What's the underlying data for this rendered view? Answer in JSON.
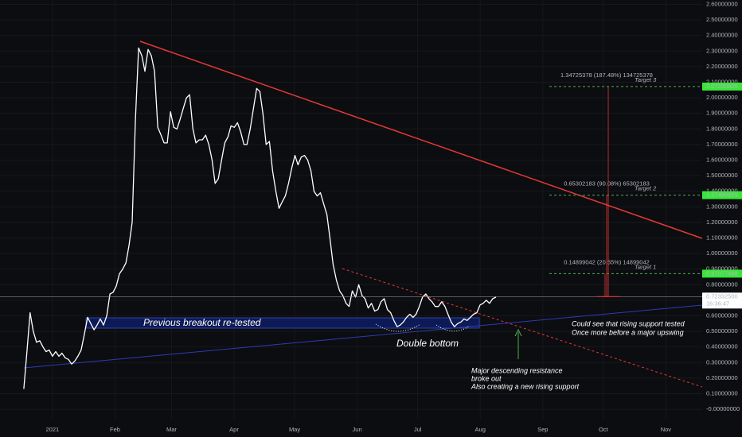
{
  "chart_data": {
    "type": "line",
    "x": [
      -14.2,
      -12.6,
      -11.1,
      -9.5,
      -7.9,
      -6.3,
      -4.7,
      -3.2,
      -1.6,
      0,
      1.6,
      3.2,
      4.7,
      6.3,
      7.9,
      9.5,
      11.1,
      12.6,
      14.2,
      15.8,
      17.4,
      19.0,
      20.6,
      22.1,
      23.7,
      25.3,
      26.9,
      28.5,
      30.0,
      31.6,
      33.2,
      34.8,
      36.4,
      37.9,
      39.5,
      41.1,
      42.7,
      44.3,
      45.8,
      47.4,
      49.0,
      50.6,
      52.2,
      53.8,
      55.3,
      56.9,
      58.5,
      60.1,
      61.7,
      63.2,
      64.8,
      66.4,
      68.0,
      69.6,
      71.1,
      72.7,
      74.3,
      75.9,
      77.5,
      79.1,
      80.6,
      82.2,
      83.8,
      85.4,
      87.0,
      88.5,
      90.1,
      91.7,
      93.3,
      94.9,
      96.4,
      98.0,
      99.6,
      101.2,
      102.8,
      104.3,
      105.9,
      107.5,
      109.1,
      110.7,
      112.3,
      113.8,
      115.4,
      117.0,
      118.6,
      120.2,
      121.7,
      123.3,
      124.9,
      126.5,
      128.1,
      129.6,
      131.2,
      132.8,
      134.4,
      136.0,
      137.5,
      139.1,
      140.7,
      142.3,
      143.9,
      145.5,
      147.0,
      148.6,
      150.2,
      151.8,
      153.4,
      154.9,
      156.5,
      158.1,
      159.7,
      161.3,
      162.8,
      164.4,
      166.0,
      167.6,
      169.2,
      170.8,
      172.3,
      173.9,
      175.5,
      177.1,
      178.7,
      180.2,
      181.8,
      183.4,
      185.0,
      186.6,
      188.1,
      189.7,
      191.3,
      192.9,
      194.5,
      196.0,
      197.6,
      199.2,
      200.8,
      202.4,
      204.0,
      205.5,
      207.1,
      208.7,
      210.3,
      211.9,
      213.4,
      215.0,
      216.6,
      218.2,
      219.8
    ],
    "series": [
      {
        "color": "#ffffff",
        "values": [
          0.13,
          0.38,
          0.62,
          0.5,
          0.43,
          0.44,
          0.4,
          0.37,
          0.38,
          0.34,
          0.37,
          0.34,
          0.36,
          0.33,
          0.32,
          0.29,
          0.31,
          0.34,
          0.38,
          0.48,
          0.59,
          0.55,
          0.51,
          0.54,
          0.58,
          0.54,
          0.6,
          0.74,
          0.75,
          0.79,
          0.87,
          0.9,
          0.94,
          1.05,
          1.2,
          1.86,
          2.32,
          2.27,
          2.17,
          2.31,
          2.27,
          2.17,
          1.81,
          1.76,
          1.71,
          1.71,
          1.91,
          1.81,
          1.8,
          1.86,
          1.93,
          2.0,
          2.02,
          1.8,
          1.71,
          1.73,
          1.73,
          1.76,
          1.7,
          1.6,
          1.45,
          1.48,
          1.6,
          1.71,
          1.75,
          1.82,
          1.81,
          1.84,
          1.78,
          1.7,
          1.7,
          1.8,
          1.93,
          2.06,
          2.04,
          1.9,
          1.7,
          1.72,
          1.53,
          1.4,
          1.29,
          1.33,
          1.37,
          1.45,
          1.55,
          1.63,
          1.57,
          1.62,
          1.63,
          1.6,
          1.53,
          1.4,
          1.37,
          1.39,
          1.32,
          1.25,
          1.1,
          0.93,
          0.83,
          0.76,
          0.73,
          0.68,
          0.66,
          0.76,
          0.72,
          0.8,
          0.73,
          0.71,
          0.65,
          0.68,
          0.63,
          0.64,
          0.69,
          0.71,
          0.64,
          0.62,
          0.57,
          0.53,
          0.54,
          0.56,
          0.59,
          0.61,
          0.59,
          0.61,
          0.66,
          0.72,
          0.74,
          0.71,
          0.69,
          0.66,
          0.66,
          0.69,
          0.66,
          0.61,
          0.56,
          0.53,
          0.55,
          0.56,
          0.58,
          0.57,
          0.59,
          0.61,
          0.62,
          0.67,
          0.68,
          0.7,
          0.68,
          0.71,
          0.72
        ]
      }
    ],
    "xlim": [
      -26,
      322
    ],
    "xticks": [
      {
        "value": 0,
        "label": "2021"
      },
      {
        "value": 31,
        "label": "Feb"
      },
      {
        "value": 59,
        "label": "Mar"
      },
      {
        "value": 90,
        "label": "Apr"
      },
      {
        "value": 120,
        "label": "May"
      },
      {
        "value": 151,
        "label": "Jun"
      },
      {
        "value": 181,
        "label": "Jul"
      },
      {
        "value": 212,
        "label": "Aug"
      },
      {
        "value": 243,
        "label": "Sep"
      },
      {
        "value": 273,
        "label": "Oct"
      },
      {
        "value": 304,
        "label": "Nov"
      }
    ],
    "ylim": [
      -0.066,
      2.628
    ],
    "yticks": [
      {
        "value": 0,
        "label": "-0.00000000"
      },
      {
        "value": 0.1,
        "label": "0.10000000"
      },
      {
        "value": 0.2,
        "label": "0.20000000"
      },
      {
        "value": 0.3,
        "label": "0.30000000"
      },
      {
        "value": 0.4,
        "label": "0.40000000"
      },
      {
        "value": 0.5,
        "label": "0.50000000"
      },
      {
        "value": 0.6,
        "label": "0.60000000"
      },
      {
        "value": 0.7,
        "label": "0.70000000"
      },
      {
        "value": 0.8,
        "label": "0.80000000"
      },
      {
        "value": 0.9,
        "label": "0.90000000"
      },
      {
        "value": 1.0,
        "label": "1.00000000"
      },
      {
        "value": 1.1,
        "label": "1.10000000"
      },
      {
        "value": 1.2,
        "label": "1.20000000"
      },
      {
        "value": 1.3,
        "label": "1.30000000"
      },
      {
        "value": 1.4,
        "label": "1.40000000"
      },
      {
        "value": 1.5,
        "label": "1.50000000"
      },
      {
        "value": 1.6,
        "label": "1.60000000"
      },
      {
        "value": 1.7,
        "label": "1.70000000"
      },
      {
        "value": 1.8,
        "label": "1.80000000"
      },
      {
        "value": 1.9,
        "label": "1.90000000"
      },
      {
        "value": 2.0,
        "label": "2.00000000"
      },
      {
        "value": 2.1,
        "label": "2.10000000"
      },
      {
        "value": 2.2,
        "label": "2.20000000"
      },
      {
        "value": 2.3,
        "label": "2.30000000"
      },
      {
        "value": 2.4,
        "label": "2.40000000"
      },
      {
        "value": 2.5,
        "label": "2.50000000"
      },
      {
        "value": 2.6,
        "label": "2.60000000"
      }
    ],
    "grid": true,
    "last_price": {
      "value": 0.723325,
      "label": "0.72332500"
    },
    "countdown": "16:36:47",
    "targets": [
      {
        "label": "Target 1",
        "value": 0.87077488,
        "measure": "0.14899042 (20.55%) 14899042"
      },
      {
        "label": "Target 2",
        "value": 1.37480629,
        "measure": "0.65302183 (90.08%) 65302183"
      },
      {
        "label": "Target 3",
        "value": 2.07220825,
        "measure": "1.34725378 (187.48%) 134725378"
      }
    ],
    "notes": [
      "Previous breakout re-tested",
      "Double bottom",
      "Could see that rising support tested",
      "Once more before a major upswing",
      "Major descending resistance",
      "broke out",
      "Also creating a new rising support"
    ]
  }
}
